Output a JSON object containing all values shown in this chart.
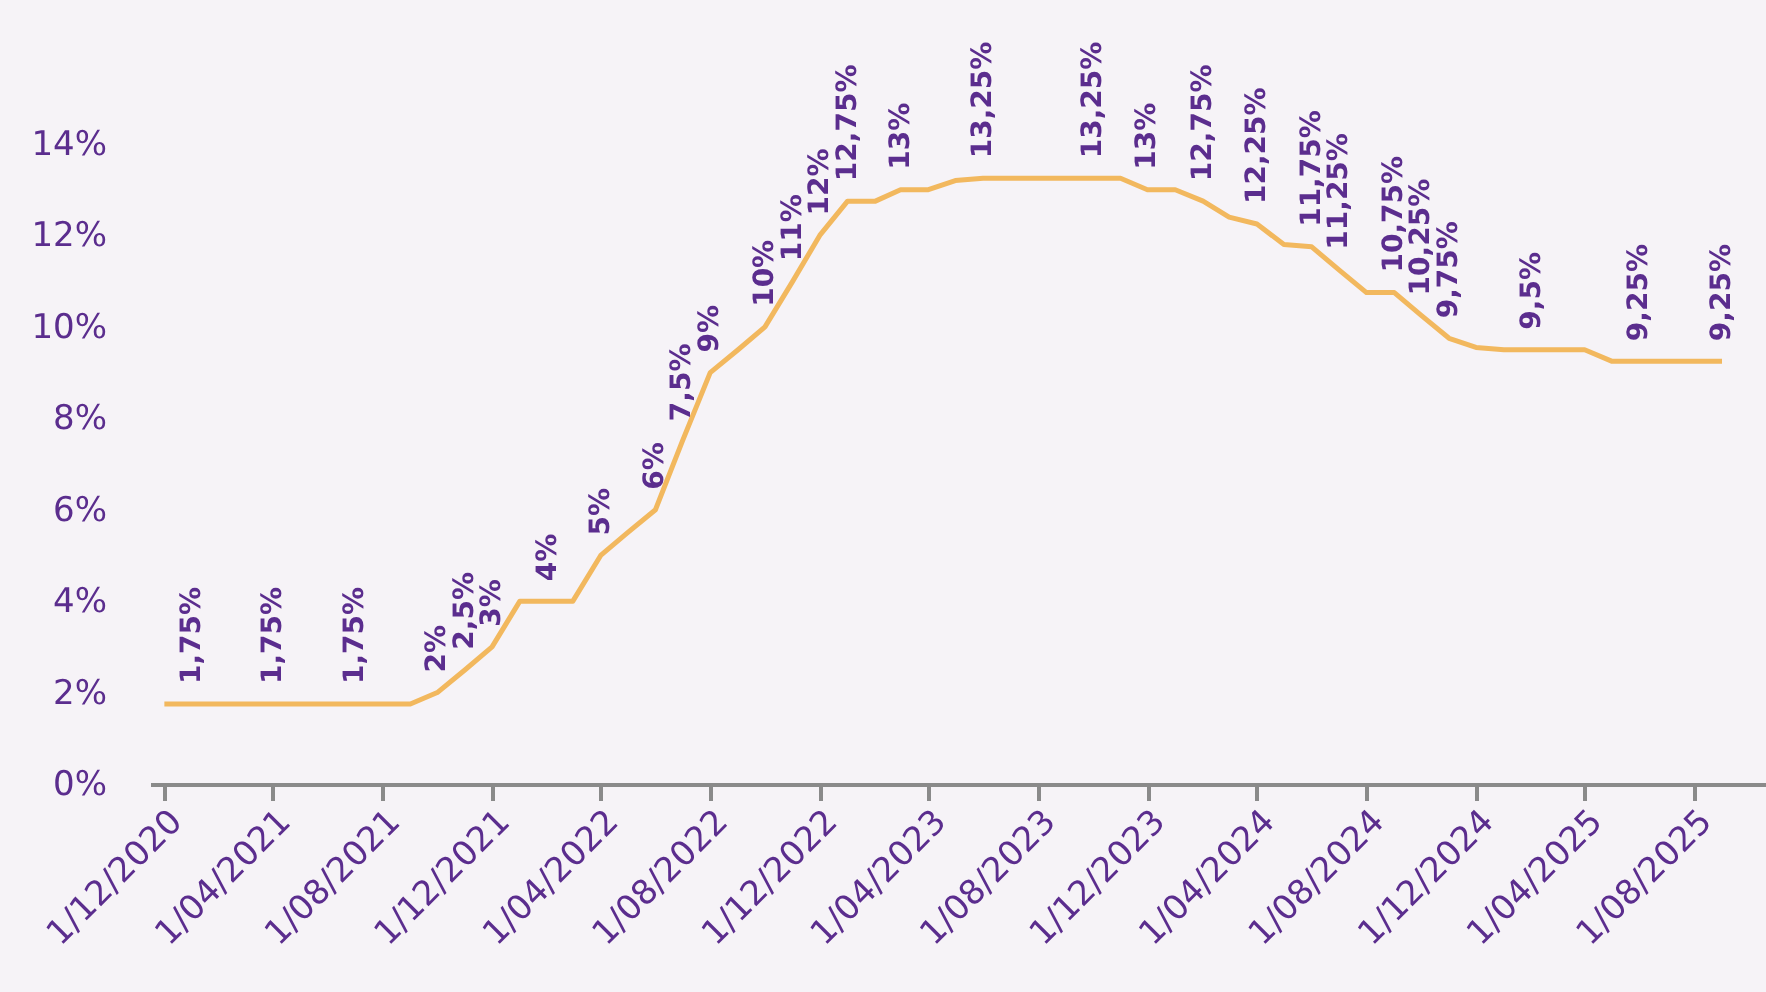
{
  "chart_data": {
    "type": "line",
    "x": [
      "2020-12-01",
      "2021-01-01",
      "2021-02-01",
      "2021-03-01",
      "2021-04-01",
      "2021-05-01",
      "2021-06-01",
      "2021-07-01",
      "2021-08-01",
      "2021-09-01",
      "2021-10-01",
      "2021-11-01",
      "2021-12-01",
      "2022-01-01",
      "2022-02-01",
      "2022-03-01",
      "2022-04-01",
      "2022-05-01",
      "2022-06-01",
      "2022-07-01",
      "2022-08-01",
      "2022-09-01",
      "2022-10-01",
      "2022-11-01",
      "2022-12-01",
      "2023-01-01",
      "2023-02-01",
      "2023-03-01",
      "2023-04-01",
      "2023-05-01",
      "2023-06-01",
      "2023-07-01",
      "2023-08-01",
      "2023-09-01",
      "2023-10-01",
      "2023-11-01",
      "2023-12-01",
      "2024-01-01",
      "2024-02-01",
      "2024-03-01",
      "2024-04-01",
      "2024-05-01",
      "2024-06-01",
      "2024-07-01",
      "2024-08-01",
      "2024-09-01",
      "2024-10-01",
      "2024-11-01",
      "2024-12-01",
      "2025-01-01",
      "2025-02-01",
      "2025-03-01",
      "2025-04-01",
      "2025-05-01",
      "2025-06-01",
      "2025-07-01",
      "2025-08-01",
      "2025-09-01"
    ],
    "series": [
      {
        "color": "#f2b85e",
        "values": [
          1.75,
          1.75,
          1.75,
          1.75,
          1.75,
          1.75,
          1.75,
          1.75,
          1.75,
          1.75,
          2,
          2.5,
          3,
          4,
          4,
          4,
          5,
          5.5,
          6,
          7.5,
          9,
          9.5,
          10,
          11,
          12,
          12.75,
          12.75,
          13,
          13,
          13.2,
          13.25,
          13.25,
          13.25,
          13.25,
          13.25,
          13.25,
          13,
          13,
          12.75,
          12.4,
          12.25,
          11.8,
          11.75,
          11.25,
          10.75,
          10.75,
          10.25,
          9.75,
          9.55,
          9.5,
          9.5,
          9.5,
          9.5,
          9.25,
          9.25,
          9.25,
          9.25,
          9.25
        ],
        "value_labels": [
          null,
          "1,75%",
          null,
          null,
          "1,75%",
          null,
          null,
          "1,75%",
          null,
          null,
          "2%",
          "2,5%",
          "3%",
          null,
          "4%",
          null,
          "5%",
          null,
          "6%",
          "7,5%",
          "9%",
          null,
          "10%",
          "11%",
          "12%",
          "12,75%",
          null,
          "13%",
          null,
          null,
          "13,25%",
          null,
          null,
          null,
          "13,25%",
          null,
          "13%",
          null,
          "12,75%",
          null,
          "12,25%",
          null,
          "11,75%",
          "11,25%",
          null,
          "10,75%",
          "10,25%",
          "9,75%",
          null,
          null,
          "9,5%",
          null,
          null,
          null,
          "9,25%",
          null,
          null,
          "9,25%"
        ]
      }
    ],
    "xlim": [
      "2020-11-15",
      "2025-10-20"
    ],
    "xticks": [
      {
        "value": "2020-12-01",
        "label": "1/12/2020"
      },
      {
        "value": "2021-04-01",
        "label": "1/04/2021"
      },
      {
        "value": "2021-08-01",
        "label": "1/08/2021"
      },
      {
        "value": "2021-12-01",
        "label": "1/12/2021"
      },
      {
        "value": "2022-04-01",
        "label": "1/04/2022"
      },
      {
        "value": "2022-08-01",
        "label": "1/08/2022"
      },
      {
        "value": "2022-12-01",
        "label": "1/12/2022"
      },
      {
        "value": "2023-04-01",
        "label": "1/04/2023"
      },
      {
        "value": "2023-08-01",
        "label": "1/08/2023"
      },
      {
        "value": "2023-12-01",
        "label": "1/12/2023"
      },
      {
        "value": "2024-04-01",
        "label": "1/04/2024"
      },
      {
        "value": "2024-08-01",
        "label": "1/08/2024"
      },
      {
        "value": "2024-12-01",
        "label": "1/12/2024"
      },
      {
        "value": "2025-04-01",
        "label": "1/04/2025"
      },
      {
        "value": "2025-08-01",
        "label": "1/08/2025"
      }
    ],
    "ylim": [
      0,
      14
    ],
    "yticks": [
      {
        "value": 0,
        "label": "0%"
      },
      {
        "value": 2,
        "label": "2%"
      },
      {
        "value": 4,
        "label": "4%"
      },
      {
        "value": 6,
        "label": "6%"
      },
      {
        "value": 8,
        "label": "8%"
      },
      {
        "value": 10,
        "label": "10%"
      },
      {
        "value": 12,
        "label": "12%"
      },
      {
        "value": 14,
        "label": "14%"
      }
    ],
    "grid": false,
    "marker": "none",
    "line_style": "solid"
  }
}
